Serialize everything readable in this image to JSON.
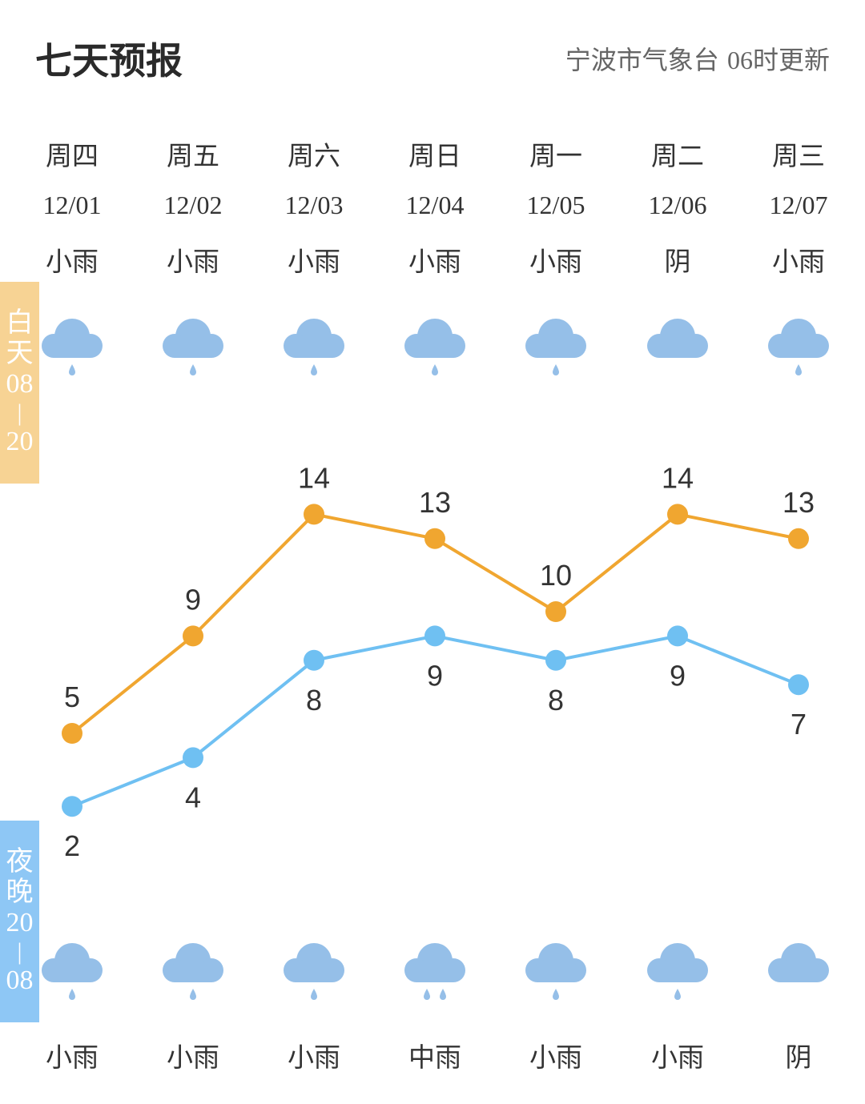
{
  "header": {
    "title": "七天预报",
    "source": "宁波市气象台",
    "update": "06时更新"
  },
  "bands": {
    "day": {
      "label1": "白",
      "label2": "天",
      "start": "08",
      "sep": "|",
      "end": "20"
    },
    "night": {
      "label1": "夜",
      "label2": "晚",
      "start": "20",
      "sep": "|",
      "end": "08"
    }
  },
  "colors": {
    "high": "#f0a630",
    "low": "#6fc0f2",
    "cloud": "#95bfe8",
    "day_band": "#f7d394",
    "night_band": "#8ec7f5"
  },
  "days": [
    {
      "weekday": "周四",
      "date": "12/01",
      "day_cond": "小雨",
      "day_icon": "light-rain",
      "night_cond": "小雨",
      "night_icon": "light-rain"
    },
    {
      "weekday": "周五",
      "date": "12/02",
      "day_cond": "小雨",
      "day_icon": "light-rain",
      "night_cond": "小雨",
      "night_icon": "light-rain"
    },
    {
      "weekday": "周六",
      "date": "12/03",
      "day_cond": "小雨",
      "day_icon": "light-rain",
      "night_cond": "小雨",
      "night_icon": "light-rain"
    },
    {
      "weekday": "周日",
      "date": "12/04",
      "day_cond": "小雨",
      "day_icon": "light-rain",
      "night_cond": "中雨",
      "night_icon": "moderate-rain"
    },
    {
      "weekday": "周一",
      "date": "12/05",
      "day_cond": "小雨",
      "day_icon": "light-rain",
      "night_cond": "小雨",
      "night_icon": "light-rain"
    },
    {
      "weekday": "周二",
      "date": "12/06",
      "day_cond": "阴",
      "day_icon": "overcast",
      "night_cond": "小雨",
      "night_icon": "light-rain"
    },
    {
      "weekday": "周三",
      "date": "12/07",
      "day_cond": "小雨",
      "day_icon": "light-rain",
      "night_cond": "阴",
      "night_icon": "overcast"
    }
  ],
  "chart_data": {
    "type": "line",
    "categories": [
      "12/01",
      "12/02",
      "12/03",
      "12/04",
      "12/05",
      "12/06",
      "12/07"
    ],
    "series": [
      {
        "values": [
          5,
          9,
          14,
          13,
          10,
          14,
          13
        ],
        "color": "#f0a630"
      },
      {
        "values": [
          2,
          4,
          8,
          9,
          8,
          9,
          7
        ],
        "color": "#6fc0f2"
      }
    ],
    "grid": false,
    "legend": "none"
  }
}
